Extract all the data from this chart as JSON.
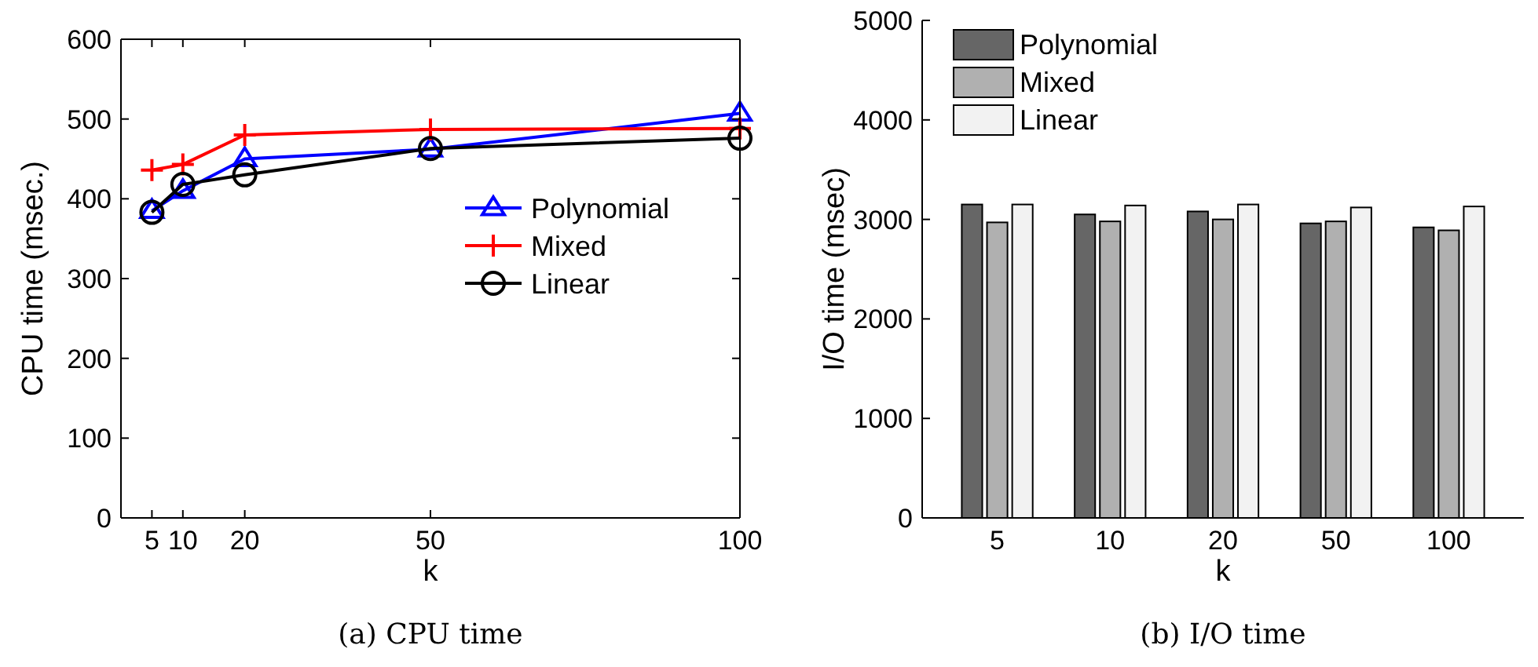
{
  "chart_data": [
    {
      "type": "line",
      "xlabel": "k",
      "ylabel": "CPU time (msec.)",
      "x": [
        5,
        10,
        20,
        50,
        100
      ],
      "xlim": [
        0,
        100
      ],
      "xticks": [
        5,
        10,
        20,
        50,
        100
      ],
      "ylim": [
        0,
        600
      ],
      "yticks": [
        0,
        100,
        200,
        300,
        400,
        500,
        600
      ],
      "grid": false,
      "legend": "right",
      "annotations": [
        "(a) CPU time"
      ],
      "series": [
        {
          "name": "Polynomial",
          "color": "#0000ff",
          "marker": "triangle",
          "values": [
            385,
            410,
            450,
            462,
            507
          ]
        },
        {
          "name": "Mixed",
          "color": "#ff0000",
          "marker": "cross",
          "values": [
            436,
            443,
            480,
            487,
            488
          ]
        },
        {
          "name": "Linear",
          "color": "#000000",
          "marker": "circle",
          "values": [
            383,
            418,
            430,
            463,
            476
          ]
        }
      ]
    },
    {
      "type": "bar",
      "xlabel": "k",
      "ylabel": "I/O time (msec)",
      "categories": [
        "5",
        "10",
        "20",
        "50",
        "100"
      ],
      "ylim": [
        0,
        5000
      ],
      "yticks": [
        0,
        1000,
        2000,
        3000,
        4000,
        5000
      ],
      "grid": false,
      "legend": "top left",
      "annotations": [
        "(b) I/O time"
      ],
      "series": [
        {
          "name": "Polynomial",
          "color": "#666666",
          "values": [
            3150,
            3050,
            3080,
            2960,
            2920
          ]
        },
        {
          "name": "Mixed",
          "color": "#b0b0b0",
          "values": [
            2970,
            2980,
            3000,
            2980,
            2890
          ]
        },
        {
          "name": "Linear",
          "color": "#f2f2f2",
          "values": [
            3150,
            3140,
            3150,
            3120,
            3130
          ]
        }
      ]
    }
  ]
}
